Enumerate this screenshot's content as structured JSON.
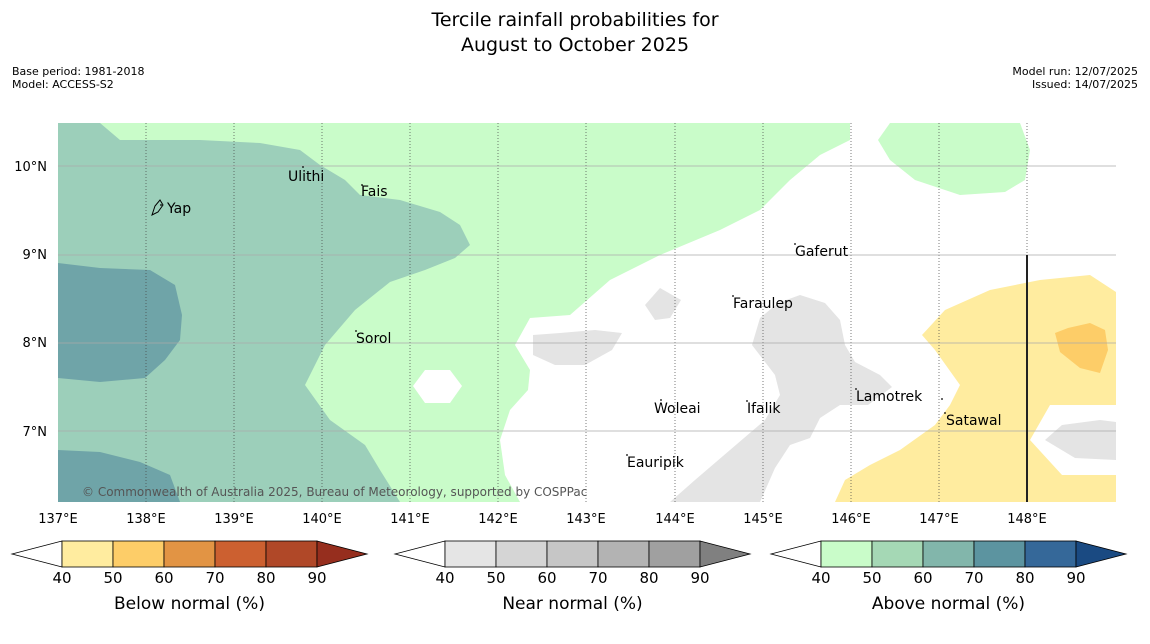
{
  "header": {
    "title_line1": "Tercile rainfall probabilities for",
    "title_line2": "August to October 2025",
    "base_period": "Base period: 1981-2018",
    "model": "Model: ACCESS-S2",
    "model_run": "Model run: 12/07/2025",
    "issued": "Issued: 14/07/2025"
  },
  "map": {
    "lon_ticks": [
      "137°E",
      "138°E",
      "139°E",
      "140°E",
      "141°E",
      "142°E",
      "143°E",
      "144°E",
      "145°E",
      "146°E",
      "147°E",
      "148°E"
    ],
    "lat_ticks": [
      "10°N",
      "9°N",
      "8°N",
      "7°N"
    ],
    "places": [
      "Yap",
      "Ulithi",
      "Fais",
      "Gaferut",
      "Faraulep",
      "Sorol",
      "Woleai",
      "Ifalik",
      "Lamotrek",
      "Satawal",
      "Eauripik"
    ],
    "copyright": "© Commonwealth of Australia 2025, Bureau of Meteorology, supported by COSPPac"
  },
  "legends": [
    {
      "title": "Below normal (%)",
      "labels": [
        "40",
        "50",
        "60",
        "70",
        "80",
        "90"
      ],
      "colors": [
        "#ffffff",
        "#ffec9f",
        "#fdcd68",
        "#e29444",
        "#cc6030",
        "#b04828",
        "#962e1e"
      ]
    },
    {
      "title": "Near normal (%)",
      "labels": [
        "40",
        "50",
        "60",
        "70",
        "80",
        "90"
      ],
      "colors": [
        "#ffffff",
        "#e5e5e5",
        "#d5d5d5",
        "#c6c6c6",
        "#b3b3b3",
        "#a0a0a0",
        "#808080"
      ]
    },
    {
      "title": "Above normal (%)",
      "labels": [
        "40",
        "50",
        "60",
        "70",
        "80",
        "90"
      ],
      "colors": [
        "#ffffff",
        "#c9fcc9",
        "#a5d8b5",
        "#82b6ab",
        "#5c94a0",
        "#356899",
        "#1a4a82"
      ]
    }
  ],
  "colors": {
    "above_50": "#c9fcc9",
    "above_60": "#9ccfba",
    "above_70": "#6fa4a8",
    "near_50": "#e4e4e4",
    "below_50": "#ffec9f",
    "below_60": "#fdcd68"
  }
}
